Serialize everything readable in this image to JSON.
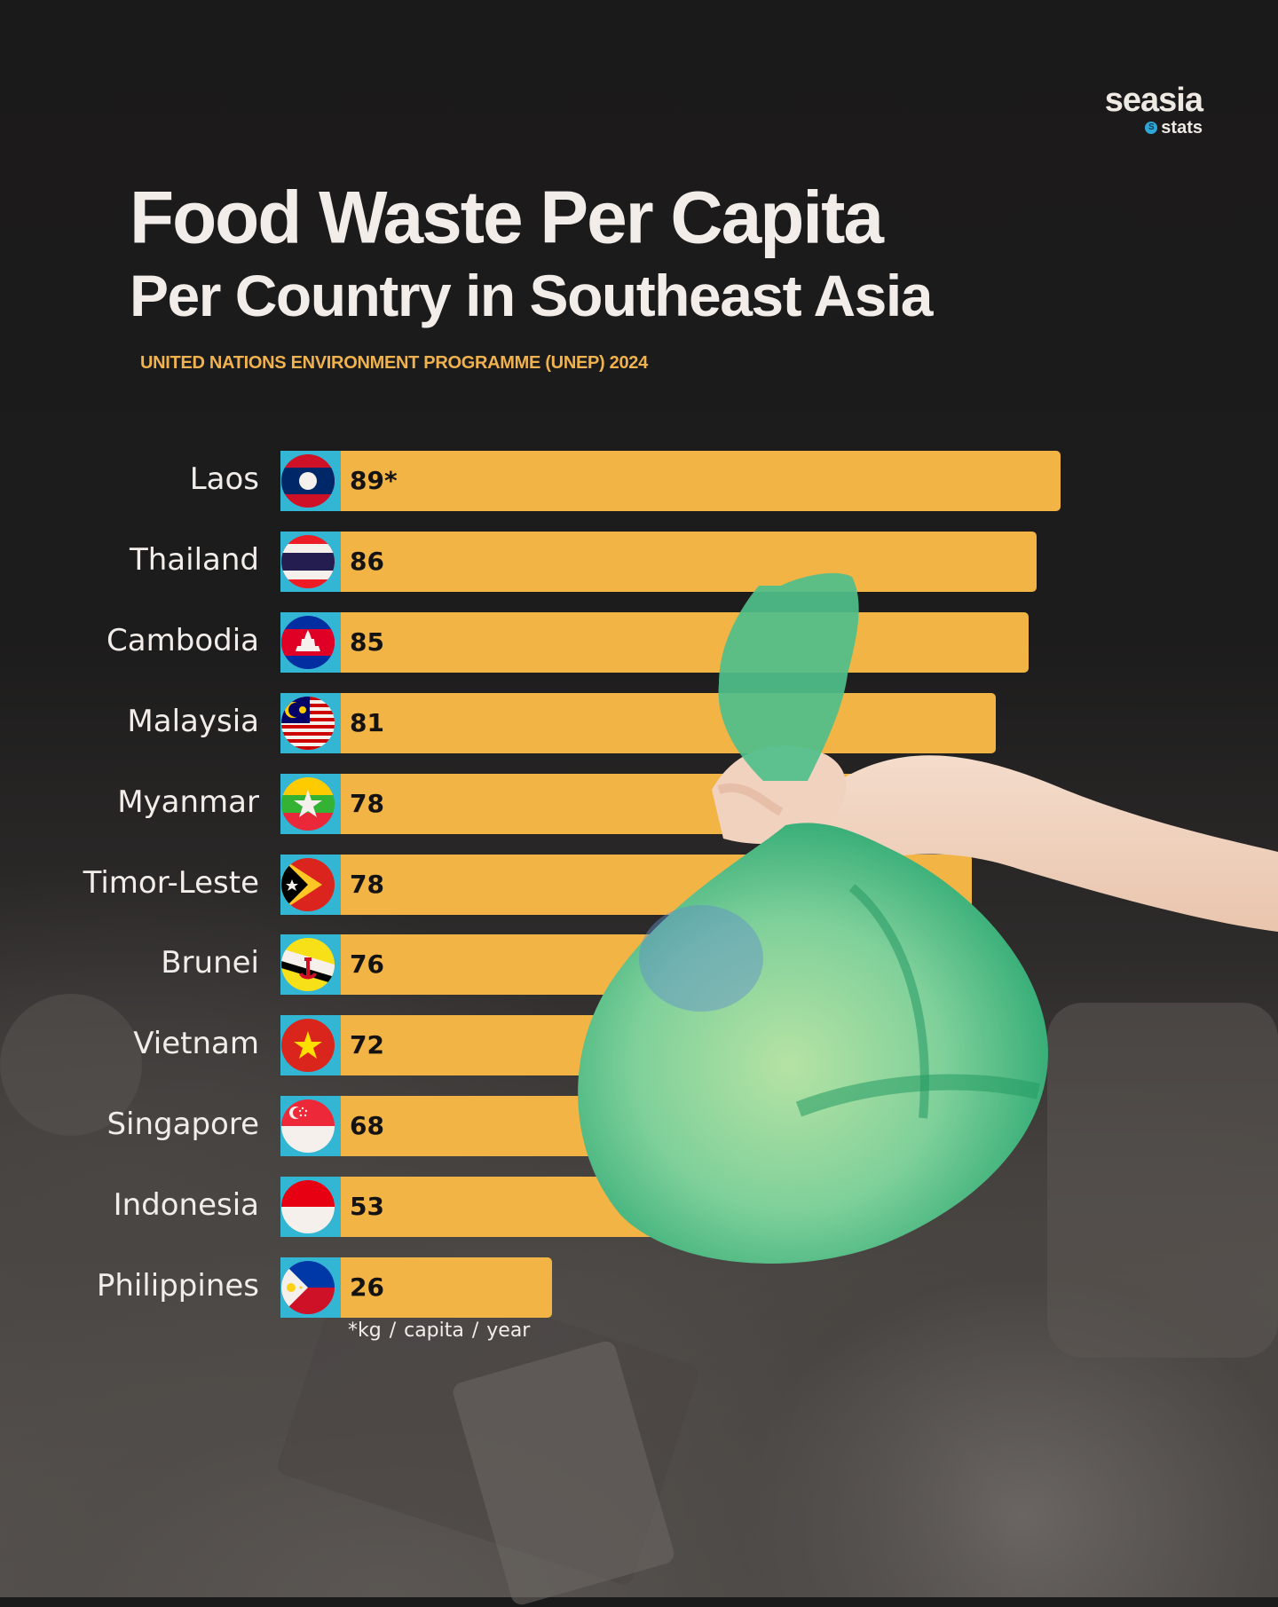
{
  "brand": {
    "name": "seasia",
    "sub": "stats",
    "badge": "S"
  },
  "title": {
    "line1": "Food Waste Per Capita",
    "line2": "Per Country in Southeast Asia"
  },
  "source": "UNITED NATIONS  ENVIRONMENT PROGRAMME (UNEP) 2024",
  "unit_note": "*kg / capita  / year",
  "colors": {
    "background": "#1c1b1b",
    "bar": "#f2b445",
    "flag_box": "#33b5d4",
    "title": "#f2ede9",
    "source": "#f0b24f",
    "value_text": "#151311"
  },
  "rows": [
    {
      "country": "Laos",
      "value_label": "89*",
      "flag": "laos-flag-icon"
    },
    {
      "country": "Thailand",
      "value_label": "86",
      "flag": "thailand-flag-icon"
    },
    {
      "country": "Cambodia",
      "value_label": "85",
      "flag": "cambodia-flag-icon"
    },
    {
      "country": "Malaysia",
      "value_label": "81",
      "flag": "malaysia-flag-icon"
    },
    {
      "country": "Myanmar",
      "value_label": "78",
      "flag": "myanmar-flag-icon"
    },
    {
      "country": "Timor-Leste",
      "value_label": "78",
      "flag": "timor-leste-flag-icon"
    },
    {
      "country": "Brunei",
      "value_label": "76",
      "flag": "brunei-flag-icon"
    },
    {
      "country": "Vietnam",
      "value_label": "72",
      "flag": "vietnam-flag-icon"
    },
    {
      "country": "Singapore",
      "value_label": "68",
      "flag": "singapore-flag-icon"
    },
    {
      "country": "Indonesia",
      "value_label": "53",
      "flag": "indonesia-flag-icon"
    },
    {
      "country": "Philippines",
      "value_label": "26",
      "flag": "philippines-flag-icon"
    }
  ],
  "chart_data": {
    "type": "bar",
    "orientation": "horizontal",
    "title": "Food Waste Per Capita Per Country in Southeast Asia",
    "subtitle": "UNITED NATIONS  ENVIRONMENT PROGRAMME (UNEP) 2024",
    "categories": [
      "Laos",
      "Thailand",
      "Cambodia",
      "Malaysia",
      "Myanmar",
      "Timor-Leste",
      "Brunei",
      "Vietnam",
      "Singapore",
      "Indonesia",
      "Philippines"
    ],
    "values": [
      89,
      86,
      85,
      81,
      78,
      78,
      76,
      72,
      68,
      53,
      26
    ],
    "value_labels": [
      "89*",
      "86",
      "85",
      "81",
      "78",
      "78",
      "76",
      "72",
      "68",
      "53",
      "26"
    ],
    "xlabel": "",
    "ylabel": "",
    "unit": "*kg / capita  / year",
    "grid": false,
    "legend": null,
    "annotations": [
      "*kg / capita  / year"
    ]
  }
}
